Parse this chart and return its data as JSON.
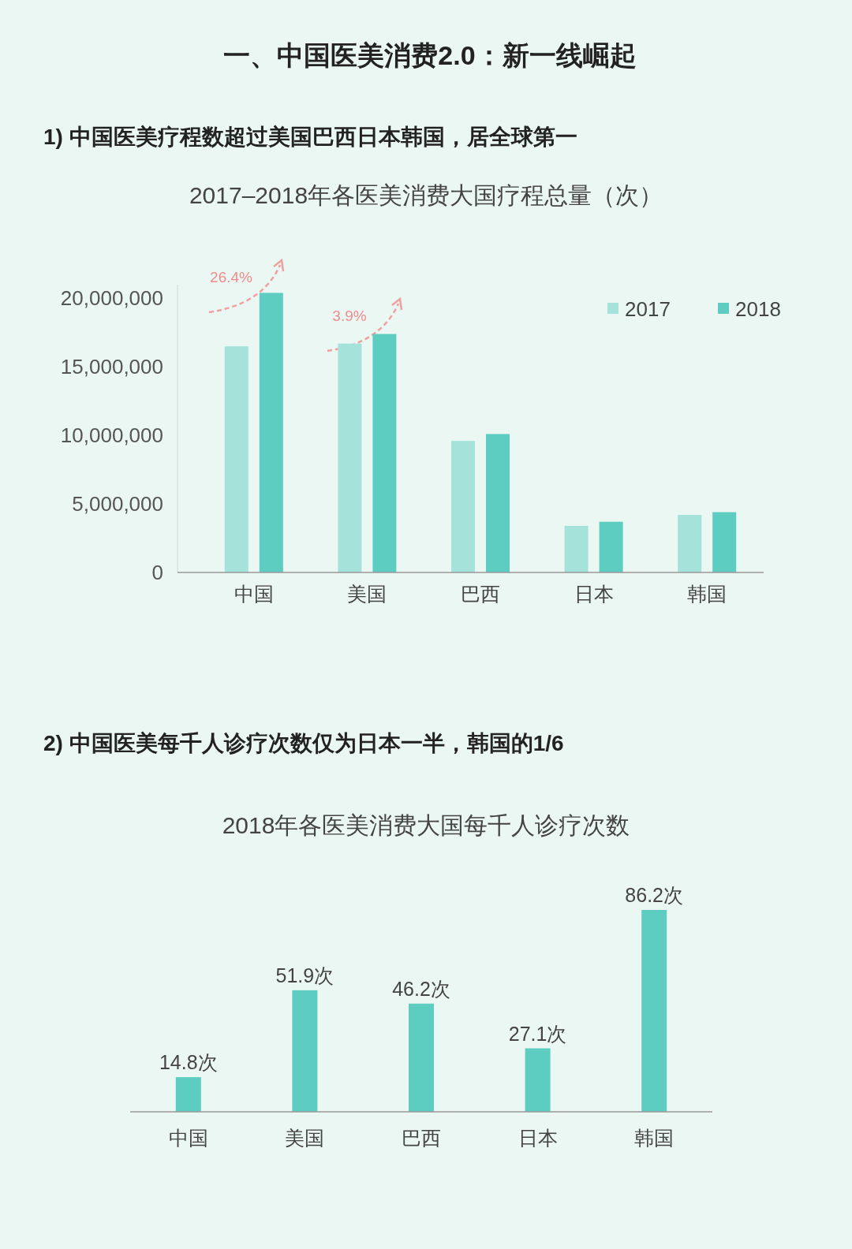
{
  "chart_data": [
    {
      "type": "bar",
      "title": "2017–2018年各医美消费大国疗程总量（次）",
      "annotations": [
        "一、中国医美消费2.0：新一线崛起",
        "1) 中国医美疗程数超过美国巴西日本韩国，居全球第一",
        "26.4%",
        "3.9%"
      ],
      "categories": [
        "中国",
        "美国",
        "巴西",
        "日本",
        "韩国"
      ],
      "series": [
        {
          "name": "2017",
          "color": "#a5e2d9",
          "values": [
            16500000,
            16700000,
            9600000,
            3400000,
            4200000
          ]
        },
        {
          "name": "2018",
          "color": "#5ecdc1",
          "values": [
            20400000,
            17400000,
            10100000,
            3700000,
            4400000
          ]
        }
      ],
      "ylim": [
        0,
        21000000
      ],
      "yticks": [
        0,
        {
          "value": 5000000,
          "label": "5,000,000"
        },
        {
          "value": 10000000,
          "label": "10,000,000"
        },
        {
          "value": 15000000,
          "label": "15,000,000"
        },
        {
          "value": 20000000,
          "label": "20,000,000"
        }
      ],
      "grid": false,
      "legend": "top right"
    },
    {
      "type": "bar",
      "title": "2018年各医美消费大国每千人诊疗次数",
      "annotations": [
        "2) 中国医美每千人诊疗次数仅为日本一半，韩国的1/6"
      ],
      "categories": [
        "中国",
        "美国",
        "巴西",
        "日本",
        "韩国"
      ],
      "series": [
        {
          "color": "#5ecdc1",
          "values": [
            14.8,
            51.9,
            46.2,
            27.1,
            86.2
          ],
          "value_labels": [
            "14.8次",
            "51.9次",
            "46.2次",
            "27.1次",
            "86.2次"
          ]
        }
      ],
      "tick_labels": "x",
      "grid": false
    }
  ]
}
